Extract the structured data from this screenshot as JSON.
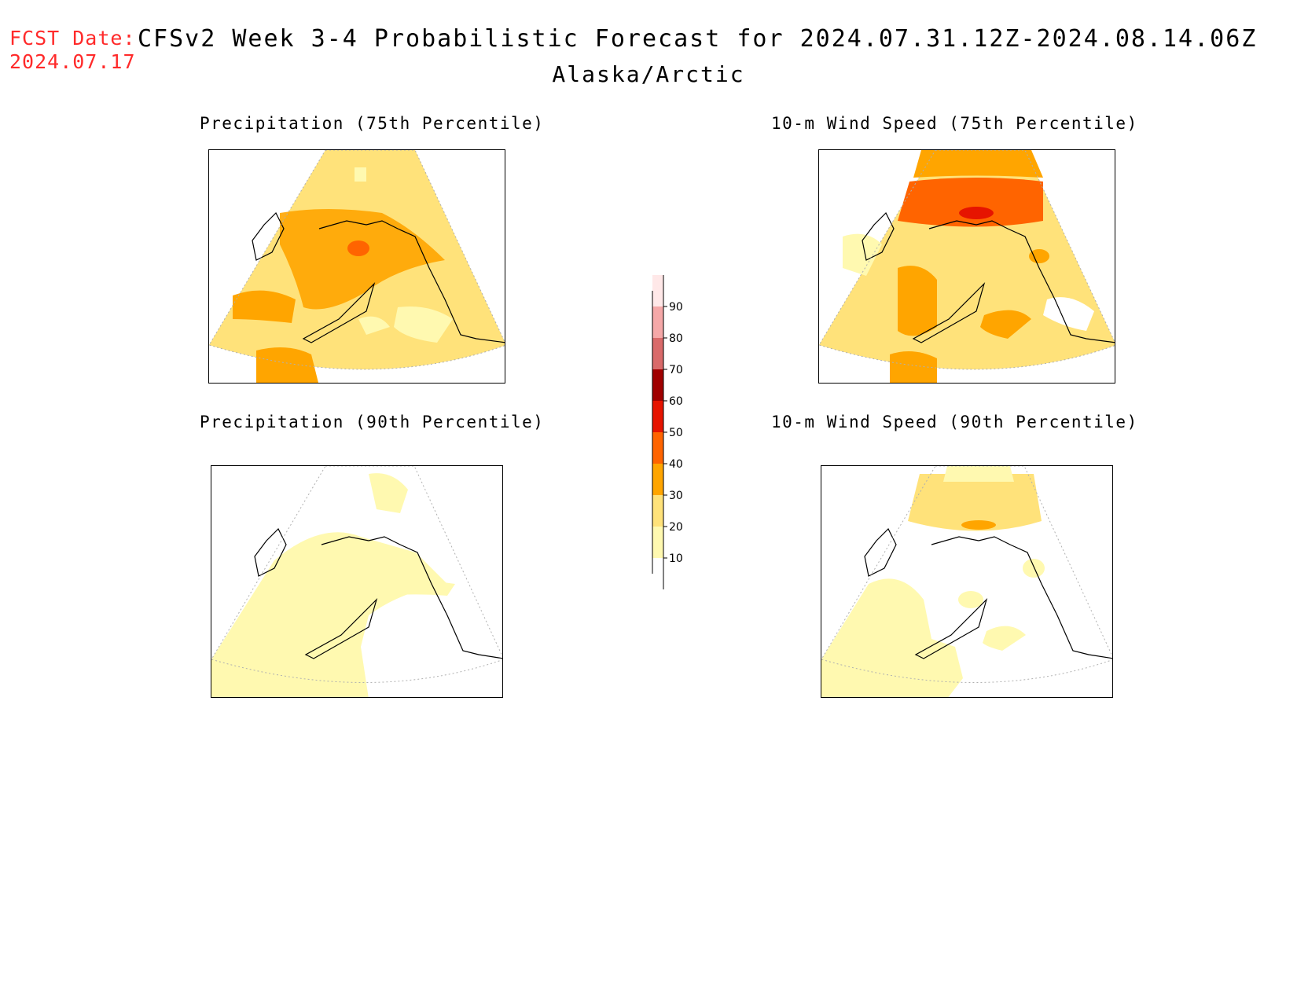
{
  "header": {
    "fcst_label": "FCST Date:",
    "fcst_date": "2024.07.17",
    "title": "CFSv2 Week 3-4 Probabilistic Forecast for 2024.07.31.12Z-2024.08.14.06Z",
    "region": "Alaska/Arctic"
  },
  "panels": [
    {
      "id": "precip-75",
      "title": "Precipitation (75th Percentile)"
    },
    {
      "id": "wind-75",
      "title": "10-m Wind Speed (75th Percentile)"
    },
    {
      "id": "precip-90",
      "title": "Precipitation (90th Percentile)"
    },
    {
      "id": "wind-90",
      "title": "10-m Wind Speed (90th Percentile)"
    }
  ],
  "colorbar": {
    "labels": [
      "10",
      "20",
      "30",
      "40",
      "50",
      "60",
      "70",
      "80",
      "90"
    ],
    "colors": [
      "#ffffff",
      "#fff9b0",
      "#ffe27a",
      "#ffa500",
      "#ff6400",
      "#e61400",
      "#a00000",
      "#d96a6a",
      "#f5a8a8",
      "#ffe8e8"
    ]
  }
}
